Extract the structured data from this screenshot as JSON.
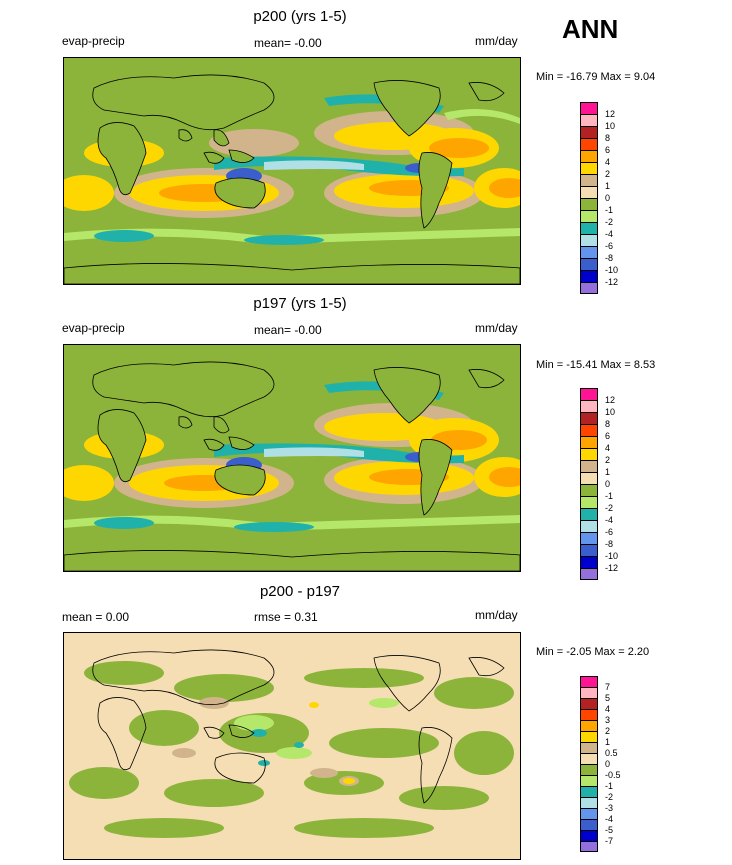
{
  "season": "ANN",
  "colors": {
    "c12": "#ff1493",
    "c10": "#ffb6c1",
    "c8": "#b22222",
    "c6": "#ff4500",
    "c4": "#ffa500",
    "c2": "#ffd700",
    "c1": "#d2b48c",
    "c0": "#f5deb3",
    "m1": "#8cb43a",
    "m2": "#b5e86a",
    "m4": "#20b2aa",
    "m6": "#b0e0e6",
    "m8": "#6495ed",
    "m10": "#3a5fcd",
    "m12": "#0000cd",
    "m14": "#9370db"
  },
  "panels": [
    {
      "title": "p200 (yrs 1-5)",
      "left_label": "evap-precip",
      "center_label": "mean=  -0.00",
      "right_label": "mm/day",
      "minmax": "Min = -16.79 Max =   9.04",
      "ticks": [
        "12",
        "10",
        "8",
        "6",
        "4",
        "2",
        "1",
        "0",
        "-1",
        "-2",
        "-4",
        "-6",
        "-8",
        "-10",
        "-12"
      ]
    },
    {
      "title": "p197 (yrs 1-5)",
      "left_label": "evap-precip",
      "center_label": "mean=  -0.00",
      "right_label": "mm/day",
      "minmax": "Min = -15.41 Max =   8.53",
      "ticks": [
        "12",
        "10",
        "8",
        "6",
        "4",
        "2",
        "1",
        "0",
        "-1",
        "-2",
        "-4",
        "-6",
        "-8",
        "-10",
        "-12"
      ]
    },
    {
      "title": "p200 - p197",
      "left_label": "mean =   0.00",
      "center_label": "rmse =   0.31",
      "right_label": "mm/day",
      "minmax": "Min =  -2.05 Max =   2.20",
      "ticks": [
        "7",
        "5",
        "4",
        "3",
        "2",
        "1",
        "0.5",
        "0",
        "-0.5",
        "-1",
        "-2",
        "-3",
        "-4",
        "-5",
        "-7"
      ]
    }
  ]
}
